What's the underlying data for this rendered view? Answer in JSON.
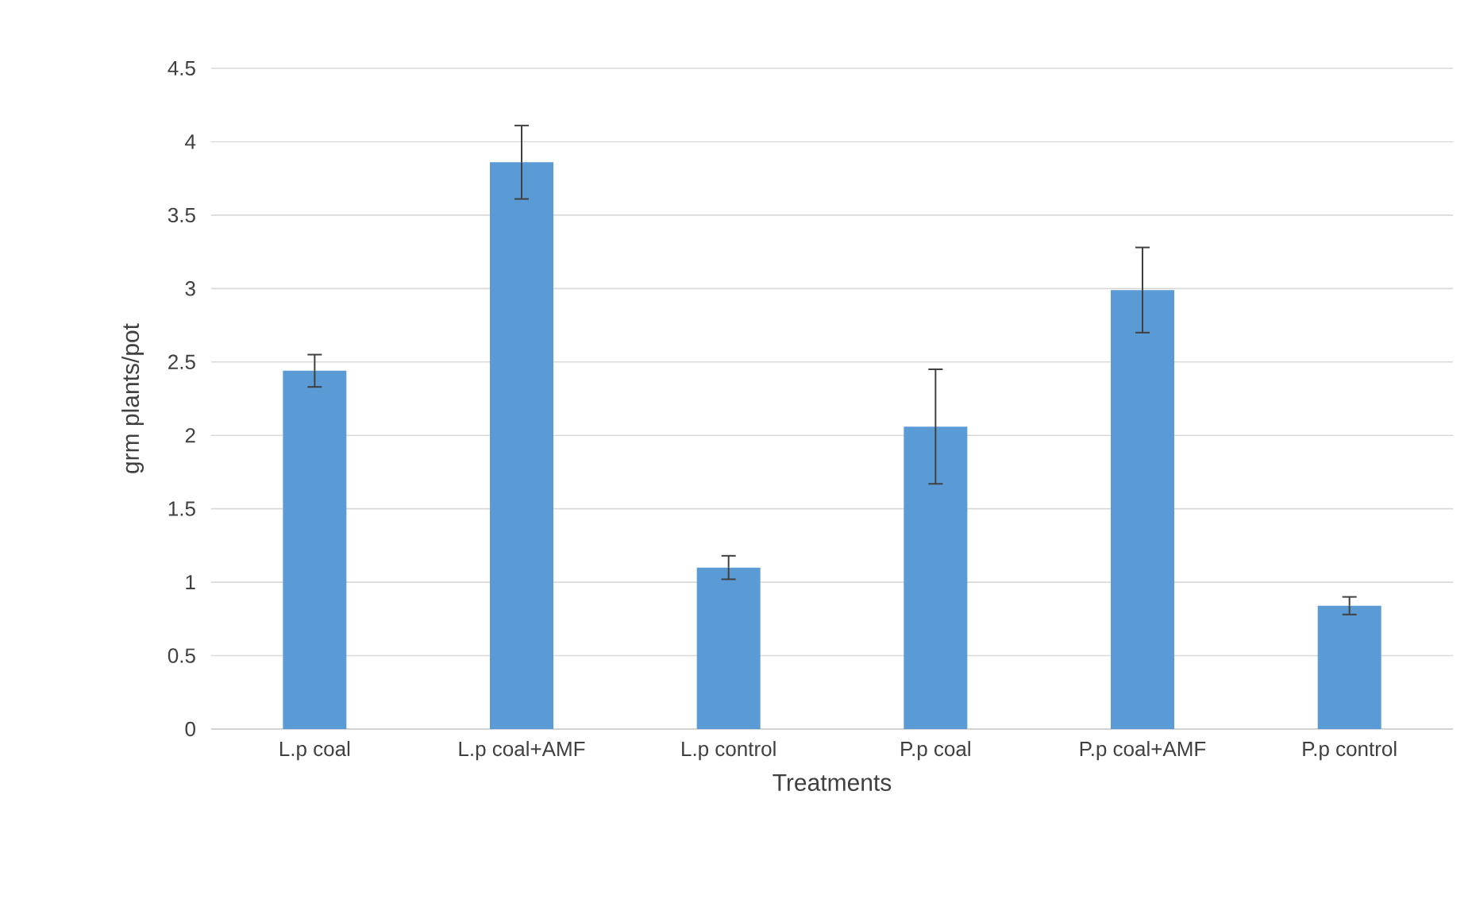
{
  "chart_data": {
    "type": "bar",
    "xlabel": "Treatments",
    "ylabel": "grm plants/pot",
    "categories": [
      "L.p coal",
      "L.p coal+AMF",
      "L.p control",
      "P.p coal",
      "P.p coal+AMF",
      "P.p control"
    ],
    "values": [
      2.44,
      3.86,
      1.1,
      2.06,
      2.99,
      0.84
    ],
    "errors": [
      0.11,
      0.25,
      0.08,
      0.39,
      0.29,
      0.06
    ],
    "color": "#5b9bd5",
    "ylim": [
      0,
      4.5
    ],
    "yticks": [
      0,
      0.5,
      1,
      1.5,
      2,
      2.5,
      3,
      3.5,
      4,
      4.5
    ],
    "grid": "y"
  }
}
